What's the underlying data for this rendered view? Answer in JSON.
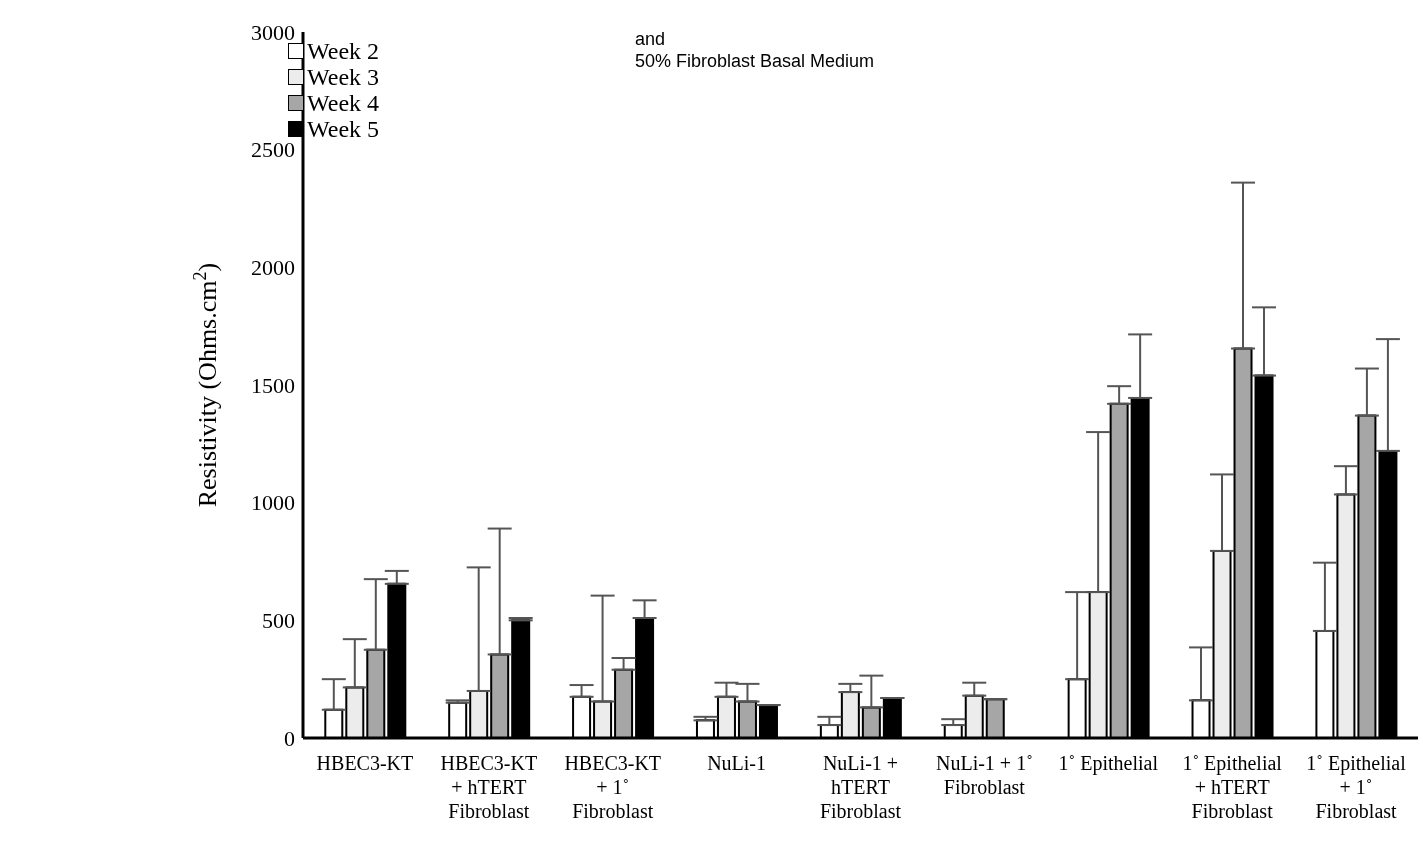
{
  "chart_data": {
    "type": "bar",
    "ylabel": "Resistivity (Ohms.cm$^{2}$)",
    "annotations": [
      "and",
      "50% Fibroblast Basal Medium"
    ],
    "categories": [
      "HBEC3-KT",
      "HBEC3-KT\n+ hTERT\nFibroblast",
      "HBEC3-KT\n+ 1˚\nFibroblast",
      "NuLi-1",
      "NuLi-1 +\nhTERT\nFibroblast",
      "NuLi-1 + 1˚\nFibroblast",
      "1˚ Epithelial",
      "1˚ Epithelial\n+ hTERT\nFibroblast",
      "1˚ Epithelial\n+ 1˚\nFibroblast"
    ],
    "series": [
      {
        "name": "Week 2",
        "color": "#ffffff",
        "values": [
          120,
          150,
          175,
          75,
          55,
          55,
          250,
          160,
          455
        ],
        "errors": [
          [
            120,
            250
          ],
          [
            150,
            160
          ],
          [
            175,
            225
          ],
          [
            75,
            90
          ],
          [
            55,
            90
          ],
          [
            55,
            80
          ],
          [
            250,
            620
          ],
          [
            160,
            385
          ],
          [
            455,
            745
          ]
        ]
      },
      {
        "name": "Week 3",
        "color": "#ececec",
        "values": [
          215,
          200,
          155,
          175,
          195,
          180,
          620,
          795,
          1035
        ],
        "errors": [
          [
            215,
            420
          ],
          [
            200,
            725
          ],
          [
            155,
            605
          ],
          [
            175,
            235
          ],
          [
            195,
            230
          ],
          [
            180,
            235
          ],
          [
            620,
            1300
          ],
          [
            795,
            1120
          ],
          [
            1035,
            1155
          ]
        ]
      },
      {
        "name": "Week 4",
        "color": "#a6a6a6",
        "values": [
          375,
          355,
          290,
          155,
          130,
          165,
          1420,
          1655,
          1370
        ],
        "errors": [
          [
            375,
            675
          ],
          [
            355,
            890
          ],
          [
            290,
            340
          ],
          [
            155,
            230
          ],
          [
            130,
            265
          ],
          [
            165,
            165
          ],
          [
            1420,
            1495
          ],
          [
            1655,
            2360
          ],
          [
            1370,
            1570
          ]
        ]
      },
      {
        "name": "Week 5",
        "color": "#000000",
        "values": [
          655,
          500,
          510,
          140,
          170,
          null,
          1445,
          1540,
          1220
        ],
        "errors": [
          [
            655,
            710
          ],
          [
            500,
            510
          ],
          [
            510,
            585
          ],
          [
            140,
            140
          ],
          [
            170,
            170
          ],
          null,
          [
            1445,
            1715
          ],
          [
            1540,
            1830
          ],
          [
            1220,
            1695
          ]
        ]
      }
    ],
    "ylim": [
      0,
      3000
    ],
    "yticks": [
      0,
      500,
      1000,
      1500,
      2000,
      2500,
      3000
    ],
    "grid": false,
    "legend": "top left"
  }
}
